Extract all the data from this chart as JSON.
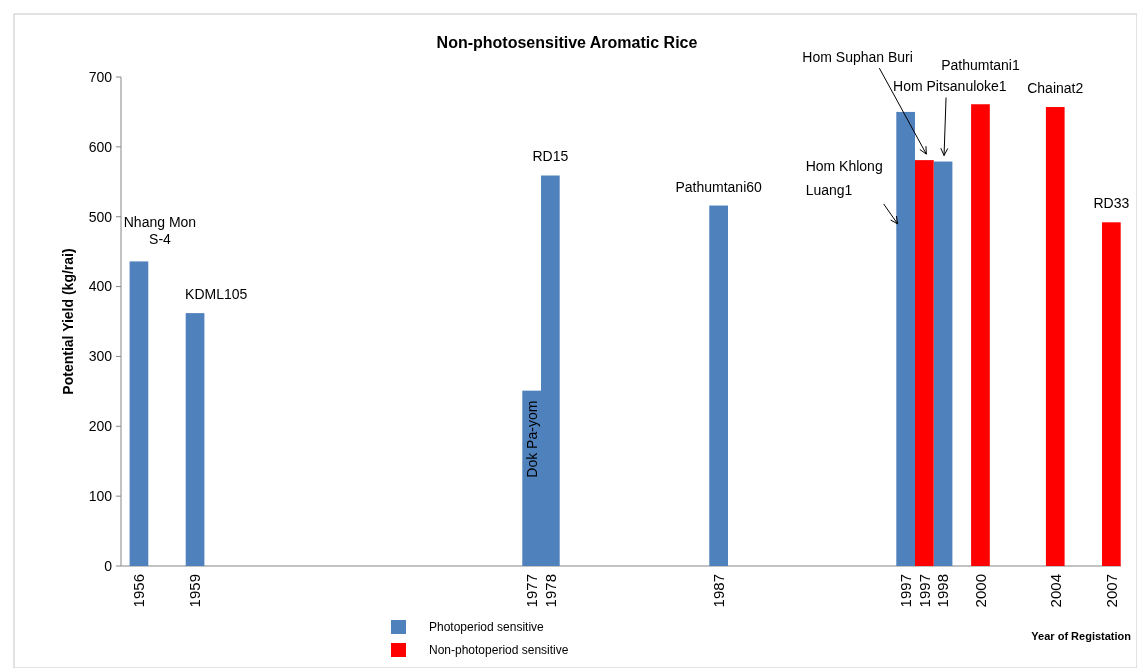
{
  "chart_data": {
    "type": "bar",
    "title": "Non-photosensitive Aromatic Rice",
    "xlabel": "Year of Registation",
    "ylabel": "Potential Yield (kg/rai)",
    "categories": [
      "1956",
      null,
      null,
      "1959",
      null,
      null,
      null,
      null,
      null,
      null,
      null,
      null,
      null,
      null,
      null,
      null,
      null,
      null,
      null,
      null,
      null,
      "1977",
      "1978",
      null,
      null,
      null,
      null,
      null,
      null,
      null,
      null,
      "1987",
      null,
      null,
      null,
      null,
      null,
      null,
      null,
      null,
      null,
      "1997",
      "1997",
      "1998",
      null,
      "2000",
      null,
      null,
      null,
      "2004",
      null,
      null,
      "2007"
    ],
    "ylim": [
      0,
      700
    ],
    "yticks": [
      0,
      100,
      200,
      300,
      400,
      500,
      600,
      700
    ],
    "legend": "bottom",
    "series": [
      {
        "name": "Photoperiod sensitive",
        "color": "#4f81bd",
        "values": [
          436,
          null,
          null,
          362,
          null,
          null,
          null,
          null,
          null,
          null,
          null,
          null,
          null,
          null,
          null,
          null,
          null,
          null,
          null,
          null,
          null,
          251,
          559,
          null,
          null,
          null,
          null,
          null,
          null,
          null,
          null,
          516,
          null,
          null,
          null,
          null,
          null,
          null,
          null,
          null,
          null,
          650,
          null,
          579,
          null,
          null,
          null,
          null,
          null,
          null,
          null,
          null,
          null
        ],
        "value_labels": [
          "Nhang Mon S-4",
          null,
          null,
          "KDML105",
          null,
          null,
          null,
          null,
          null,
          null,
          null,
          null,
          null,
          null,
          null,
          null,
          null,
          null,
          null,
          null,
          null,
          "Dok Pa-yom",
          "RD15",
          null,
          null,
          null,
          null,
          null,
          null,
          null,
          null,
          "Pathumtani60",
          null,
          null,
          null,
          null,
          null,
          null,
          null,
          null,
          null,
          "Hom Khlong Luang1",
          null,
          "Hom Pitsanuloke1",
          null,
          null,
          null,
          null,
          null,
          null,
          null,
          null,
          null
        ]
      },
      {
        "name": "Non-photoperiod sensitive",
        "color": "#ff0000",
        "values": [
          null,
          null,
          null,
          null,
          null,
          null,
          null,
          null,
          null,
          null,
          null,
          null,
          null,
          null,
          null,
          null,
          null,
          null,
          null,
          null,
          null,
          null,
          null,
          null,
          null,
          null,
          null,
          null,
          null,
          null,
          null,
          null,
          null,
          null,
          null,
          null,
          null,
          null,
          null,
          null,
          null,
          null,
          581,
          null,
          null,
          661,
          null,
          null,
          null,
          657,
          null,
          null,
          492
        ],
        "value_labels": [
          null,
          null,
          null,
          null,
          null,
          null,
          null,
          null,
          null,
          null,
          null,
          null,
          null,
          null,
          null,
          null,
          null,
          null,
          null,
          null,
          null,
          null,
          null,
          null,
          null,
          null,
          null,
          null,
          null,
          null,
          null,
          null,
          null,
          null,
          null,
          null,
          null,
          null,
          null,
          null,
          null,
          null,
          "Hom Suphan Buri",
          null,
          null,
          "Pathumtani1",
          null,
          null,
          null,
          "Chainat2",
          null,
          null,
          "RD33"
        ]
      }
    ]
  }
}
